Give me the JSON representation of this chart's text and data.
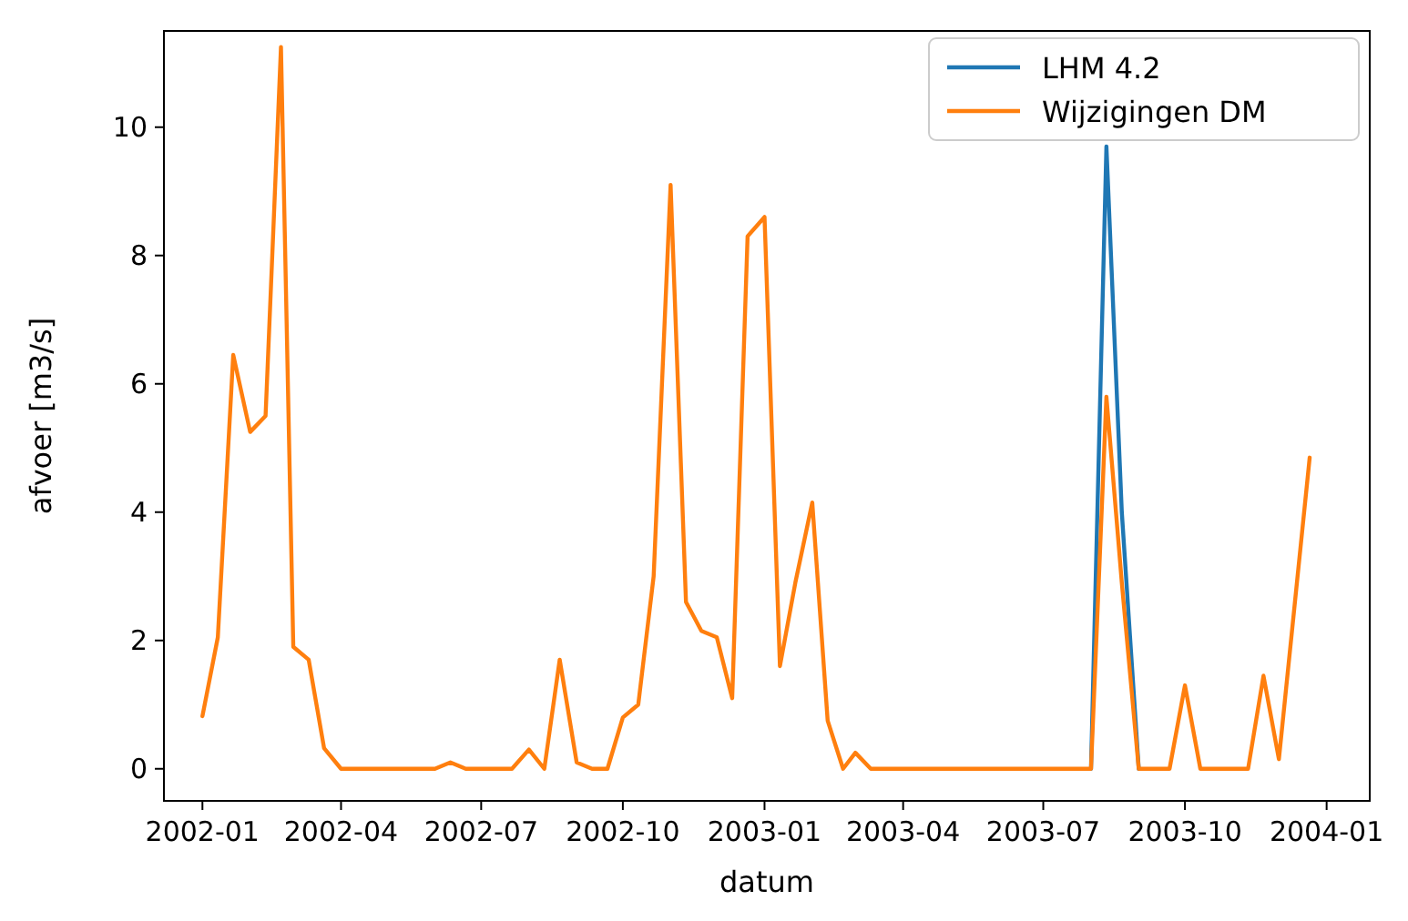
{
  "chart_data": {
    "type": "line",
    "xlabel": "datum",
    "ylabel": "afvoer [m3/s]",
    "x": [
      "2002-01-01",
      "2002-01-11",
      "2002-01-21",
      "2002-02-01",
      "2002-02-11",
      "2002-02-21",
      "2002-03-01",
      "2002-03-11",
      "2002-03-21",
      "2002-04-01",
      "2002-04-11",
      "2002-04-21",
      "2002-05-01",
      "2002-05-11",
      "2002-05-21",
      "2002-06-01",
      "2002-06-11",
      "2002-06-21",
      "2002-07-01",
      "2002-07-11",
      "2002-07-21",
      "2002-08-01",
      "2002-08-11",
      "2002-08-21",
      "2002-09-01",
      "2002-09-11",
      "2002-09-21",
      "2002-10-01",
      "2002-10-11",
      "2002-10-21",
      "2002-11-01",
      "2002-11-11",
      "2002-11-21",
      "2002-12-01",
      "2002-12-11",
      "2002-12-21",
      "2003-01-01",
      "2003-01-11",
      "2003-01-21",
      "2003-02-01",
      "2003-02-11",
      "2003-02-21",
      "2003-03-01",
      "2003-03-11",
      "2003-03-21",
      "2003-04-01",
      "2003-04-11",
      "2003-04-21",
      "2003-05-01",
      "2003-05-11",
      "2003-05-21",
      "2003-06-01",
      "2003-06-11",
      "2003-06-21",
      "2003-07-01",
      "2003-07-11",
      "2003-07-21",
      "2003-08-01",
      "2003-08-11",
      "2003-08-21",
      "2003-09-01",
      "2003-09-11",
      "2003-09-21",
      "2003-10-01",
      "2003-10-11",
      "2003-10-21",
      "2003-11-01",
      "2003-11-11",
      "2003-11-21",
      "2003-12-01",
      "2003-12-11",
      "2003-12-21"
    ],
    "series": [
      {
        "name": "LHM 4.2",
        "color": "#1f77b4",
        "values": [
          null,
          null,
          null,
          null,
          null,
          null,
          null,
          null,
          null,
          null,
          null,
          null,
          null,
          null,
          null,
          null,
          null,
          null,
          null,
          null,
          null,
          null,
          null,
          null,
          null,
          null,
          null,
          null,
          null,
          null,
          null,
          null,
          null,
          null,
          null,
          null,
          null,
          null,
          null,
          null,
          null,
          null,
          null,
          null,
          null,
          null,
          null,
          null,
          null,
          null,
          null,
          null,
          null,
          null,
          null,
          null,
          null,
          0,
          9.7,
          4.0,
          0,
          null,
          null,
          null,
          null,
          null,
          null,
          null,
          null,
          null,
          null,
          null
        ]
      },
      {
        "name": "Wijzigingen DM",
        "color": "#ff7f0e",
        "values": [
          0.82,
          2.05,
          6.45,
          5.25,
          5.5,
          11.25,
          1.9,
          1.7,
          0.32,
          0,
          0,
          0,
          0,
          0,
          0,
          0,
          0.1,
          0,
          0,
          0,
          0,
          0.3,
          0,
          1.7,
          0.1,
          0,
          0,
          0.8,
          1.0,
          3.0,
          9.1,
          2.6,
          2.15,
          2.05,
          1.1,
          8.3,
          8.6,
          1.6,
          2.9,
          4.15,
          0.75,
          0,
          0.25,
          0,
          0,
          0,
          0,
          0,
          0,
          0,
          0,
          0,
          0,
          0,
          0,
          0,
          0,
          0,
          5.8,
          2.9,
          0,
          0,
          0,
          1.3,
          0,
          0,
          0,
          0,
          1.45,
          0.15,
          2.5,
          4.85
        ]
      }
    ],
    "xlim": [
      "2001-12-07",
      "2004-01-29"
    ],
    "xticks": [
      "2002-01",
      "2002-04",
      "2002-07",
      "2002-10",
      "2003-01",
      "2003-04",
      "2003-07",
      "2003-10",
      "2004-01"
    ],
    "ylim": [
      -0.5,
      11.5
    ],
    "yticks": [
      0,
      2,
      4,
      6,
      8,
      10
    ],
    "legend": "top right",
    "grid": false,
    "marker": "none",
    "line_style": "solid"
  }
}
